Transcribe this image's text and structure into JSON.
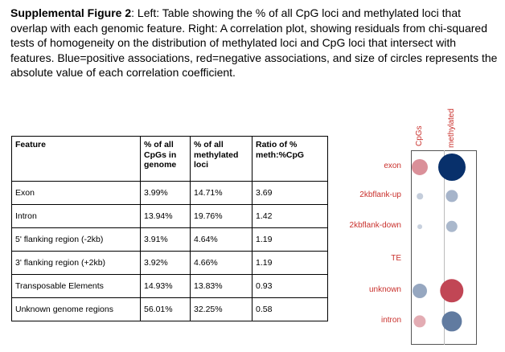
{
  "caption": {
    "lead": "Supplemental Figure 2",
    "text": ": Left: Table showing the % of all CpG loci and methylated loci that overlap with each genomic feature. Right: A correlation plot, showing residuals from chi-squared tests of homogeneity on the distribution of methylated loci and CpG loci that intersect with features. Blue=positive associations, red=negative associations, and size of circles represents the absolute value of each correlation coefficient."
  },
  "table": {
    "headers": [
      "Feature",
      "% of all CpGs in genome",
      "% of all methylated loci",
      "Ratio of % meth:%CpG"
    ],
    "rows": [
      [
        "Exon",
        "3.99%",
        "14.71%",
        "3.69"
      ],
      [
        "Intron",
        "13.94%",
        "19.76%",
        "1.42"
      ],
      [
        "5' flanking region (-2kb)",
        "3.91%",
        "4.64%",
        "1.19"
      ],
      [
        "3' flanking region (+2kb)",
        "3.92%",
        "4.66%",
        "1.19"
      ],
      [
        "Transposable Elements",
        "14.93%",
        "13.83%",
        "0.93"
      ],
      [
        "Unknown genome regions",
        "56.01%",
        "32.25%",
        "0.58"
      ]
    ]
  },
  "chart_data": {
    "type": "heatmap",
    "columns": [
      "CpGs",
      "methylated"
    ],
    "rows": [
      "exon",
      "2kbflank-up",
      "2kbflank-down",
      "TE",
      "unknown",
      "intron"
    ],
    "values": [
      [
        -0.35,
        1.0
      ],
      [
        0.05,
        0.2
      ],
      [
        0.03,
        0.18
      ],
      [
        0.0,
        0.0
      ],
      [
        0.28,
        -0.75
      ],
      [
        -0.2,
        0.55
      ]
    ],
    "positive_color": "#08306b",
    "negative_color": "#b2182b",
    "label_color": "#c9302c"
  }
}
